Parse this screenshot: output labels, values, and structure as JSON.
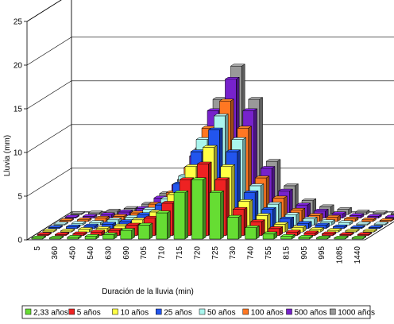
{
  "chart_data": {
    "type": "bar",
    "subtype": "3d-grouped-bar",
    "title": "",
    "xlabel": "Duración de la lluvia (min)",
    "ylabel": "Lluvia (mm)",
    "ylim": [
      0,
      25
    ],
    "yticks": [
      0,
      5,
      10,
      15,
      20,
      25
    ],
    "grid": true,
    "legend_position": "bottom",
    "categories": [
      "5",
      "360",
      "450",
      "540",
      "630",
      "690",
      "705",
      "710",
      "715",
      "720",
      "725",
      "730",
      "740",
      "755",
      "815",
      "905",
      "995",
      "1085",
      "1440"
    ],
    "series": [
      {
        "name": "2,33 años",
        "color": "#66dd33",
        "values": [
          0.0,
          0.1,
          0.2,
          0.3,
          0.5,
          1.0,
          1.6,
          3.0,
          5.3,
          6.8,
          5.3,
          2.5,
          1.3,
          0.6,
          0.3,
          0.2,
          0.1,
          0.1,
          0.0
        ]
      },
      {
        "name": "5 años",
        "color": "#ee2222",
        "values": [
          0.1,
          0.1,
          0.2,
          0.4,
          0.6,
          1.2,
          2.0,
          3.7,
          6.4,
          8.2,
          6.4,
          3.0,
          1.6,
          0.8,
          0.4,
          0.3,
          0.2,
          0.1,
          0.1
        ]
      },
      {
        "name": "10 años",
        "color": "#ffff44",
        "values": [
          0.1,
          0.1,
          0.3,
          0.4,
          0.7,
          1.4,
          2.3,
          4.3,
          7.5,
          9.7,
          7.5,
          3.5,
          1.9,
          0.9,
          0.5,
          0.3,
          0.2,
          0.1,
          0.1
        ]
      },
      {
        "name": "25 años",
        "color": "#2255ee",
        "values": [
          0.1,
          0.2,
          0.3,
          0.5,
          0.8,
          1.6,
          2.7,
          5.1,
          8.8,
          11.3,
          8.8,
          4.1,
          2.2,
          1.1,
          0.6,
          0.4,
          0.2,
          0.1,
          0.1
        ]
      },
      {
        "name": "50 años",
        "color": "#aaf5ee",
        "values": [
          0.1,
          0.2,
          0.3,
          0.6,
          0.9,
          1.8,
          3.0,
          5.6,
          9.8,
          12.5,
          9.8,
          4.5,
          2.4,
          1.2,
          0.7,
          0.4,
          0.3,
          0.1,
          0.1
        ]
      },
      {
        "name": "100 años",
        "color": "#ff7722",
        "values": [
          0.1,
          0.2,
          0.4,
          0.6,
          1.0,
          2.0,
          3.3,
          6.2,
          10.7,
          13.8,
          10.7,
          5.0,
          2.7,
          1.3,
          0.7,
          0.5,
          0.3,
          0.2,
          0.1
        ]
      },
      {
        "name": "500 años",
        "color": "#7722cc",
        "values": [
          0.1,
          0.2,
          0.4,
          0.7,
          1.1,
          2.3,
          3.8,
          7.1,
          12.3,
          15.9,
          12.3,
          5.7,
          3.1,
          1.5,
          0.8,
          0.5,
          0.3,
          0.2,
          0.1
        ]
      },
      {
        "name": "1000 años",
        "color": "#999999",
        "values": [
          0.1,
          0.2,
          0.4,
          0.7,
          1.2,
          2.4,
          4.0,
          7.6,
          13.2,
          17.0,
          13.2,
          6.1,
          3.3,
          1.6,
          0.9,
          0.6,
          0.3,
          0.2,
          0.1
        ]
      }
    ]
  }
}
